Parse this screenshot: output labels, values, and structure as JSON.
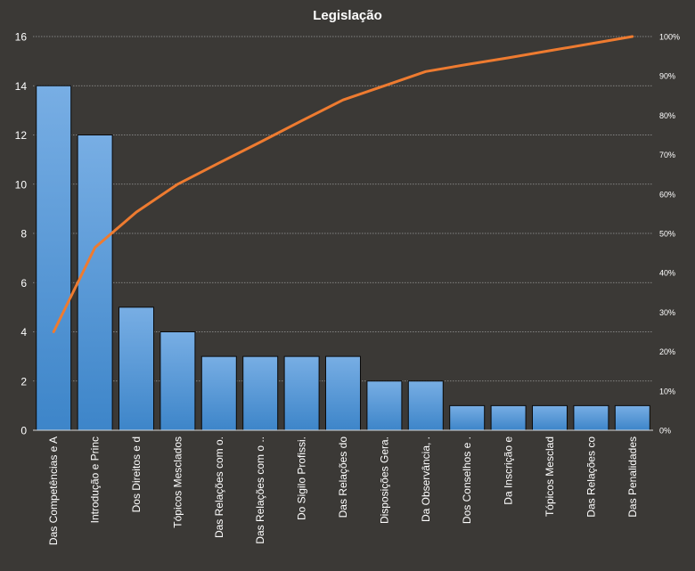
{
  "chart_data": {
    "type": "bar",
    "title": "Legislação",
    "categories": [
      "Das Competências e A",
      "Introdução  e Princ",
      "Dos Direitos e d",
      "Tópicos Mesclados",
      "Das Relações com o.",
      "Das Relações com o ..",
      "Do Sigilo Profissi.",
      "Das Relações do",
      "Disposições Gera.",
      "Da Observância, .",
      "Dos Conselhos e .",
      "Da Inscrição e",
      "Tópicos Mesclad",
      "Das Relações co",
      "Das Penalidades"
    ],
    "series": [
      {
        "type": "bar",
        "axis": "left",
        "values": [
          14,
          12,
          5,
          4,
          3,
          3,
          3,
          3,
          2,
          2,
          1,
          1,
          1,
          1,
          1
        ]
      },
      {
        "type": "line",
        "axis": "right",
        "values": [
          25,
          46.4,
          55.4,
          62.5,
          67.9,
          73.2,
          78.6,
          83.9,
          87.5,
          91.1,
          92.9,
          94.6,
          96.4,
          98.2,
          100
        ]
      }
    ],
    "ylim": [
      0,
      16
    ],
    "yticks": [
      "0",
      "2",
      "4",
      "6",
      "8",
      "10",
      "12",
      "14",
      "16"
    ],
    "y2lim": [
      0,
      100
    ],
    "y2ticks": [
      "0%",
      "10%",
      "20%",
      "30%",
      "40%",
      "50%",
      "60%",
      "70%",
      "80%",
      "90%",
      "100%"
    ],
    "grid": true,
    "legend": "none",
    "colors": {
      "background": "#3b3936",
      "bar_top": "#78aee4",
      "bar_bottom": "#3d85c9",
      "line": "#ee7b30",
      "text": "#ffffff",
      "grid": "#9a9a9a"
    }
  }
}
